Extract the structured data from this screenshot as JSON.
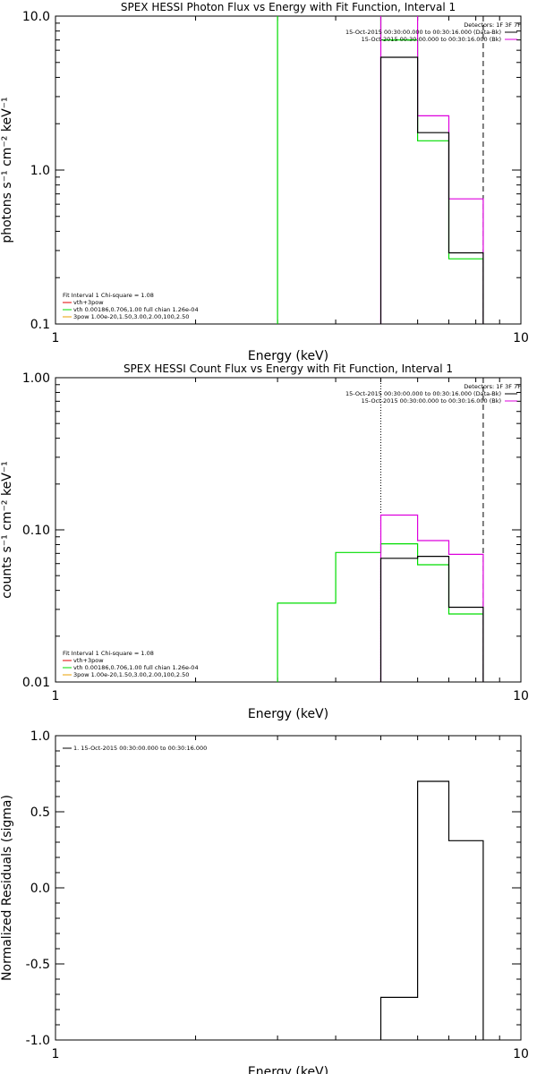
{
  "colors": {
    "black": "#000000",
    "green": "#00dd00",
    "magenta": "#dd00dd",
    "orange": "#e8a000",
    "red": "#e00000"
  },
  "chart_data": [
    {
      "type": "step",
      "title": "SPEX HESSI Photon Flux vs Energy with Fit Function, Interval 1",
      "xlabel": "Energy (keV)",
      "ylabel": "photons s⁻¹ cm⁻² keV⁻¹",
      "xscale": "log",
      "yscale": "log",
      "xlim": [
        1,
        10
      ],
      "ylim": [
        0.1,
        10
      ],
      "xticks": [
        "1",
        "10"
      ],
      "yticks": [
        {
          "v": 0.1,
          "label": "0.1"
        },
        {
          "v": 1,
          "label": "1.0"
        },
        {
          "v": 10,
          "label": "10.0"
        }
      ],
      "legend_tr": [
        {
          "text": "Detectors: 1F 3F 7F",
          "color": "",
          "line": false
        },
        {
          "text": "15-Oct-2015 00:30:00.000 to 00:30:16.000 (Data-Bk)",
          "color": "#000000",
          "line": true
        },
        {
          "text": "15-Oct-2015 00:30:00.000 to 00:30:16.000 (Bk)",
          "color": "#dd00dd",
          "line": true
        }
      ],
      "legend_bl": [
        {
          "text": "Fit Interval  1    Chi-square = 1.08",
          "color": "",
          "line": false
        },
        {
          "text": "vth+3pow",
          "color": "#e00000",
          "line": true
        },
        {
          "text": "vth 0.00186,0.706,1.00   full chian 1.26e-04",
          "color": "#00dd00",
          "line": true
        },
        {
          "text": "3pow 1.00e-20,1.50,3.00,2.00,100,2.50",
          "color": "#e8a000",
          "line": true
        }
      ],
      "vlines": [
        {
          "x": 5.0,
          "style": "solid",
          "color": "#dd00dd"
        },
        {
          "x": 8.3,
          "style": "dashed",
          "color": "#000000"
        }
      ],
      "series": [
        {
          "color": "#00dd00",
          "edges": [
            3.0,
            5.0,
            6.0,
            7.0,
            8.3
          ],
          "values": [
            10.5,
            7.0,
            1.55,
            0.265
          ]
        },
        {
          "color": "#dd00dd",
          "edges": [
            5.0,
            6.0,
            7.0,
            8.3
          ],
          "values": [
            10.5,
            2.25,
            0.65
          ]
        },
        {
          "color": "#000000",
          "edges": [
            5.0,
            6.0,
            7.0,
            8.3
          ],
          "values": [
            5.4,
            1.75,
            0.29
          ]
        }
      ]
    },
    {
      "type": "step",
      "title": "SPEX HESSI Count Flux vs Energy with Fit Function, Interval 1",
      "xlabel": "Energy (keV)",
      "ylabel": "counts s⁻¹ cm⁻² keV⁻¹",
      "xscale": "log",
      "yscale": "log",
      "xlim": [
        1,
        10
      ],
      "ylim": [
        0.01,
        1
      ],
      "xticks": [
        "1",
        "10"
      ],
      "yticks": [
        {
          "v": 0.01,
          "label": "0.01"
        },
        {
          "v": 0.1,
          "label": "0.10"
        },
        {
          "v": 1,
          "label": "1.00"
        }
      ],
      "legend_tr": [
        {
          "text": "Detectors: 1F 3F 7F",
          "color": "",
          "line": false
        },
        {
          "text": "15-Oct-2015 00:30:00.000 to 00:30:16.000 (Data-Bk)",
          "color": "#000000",
          "line": true
        },
        {
          "text": "15-Oct-2015 00:30:00.000 to 00:30:16.000 (Bk)",
          "color": "#dd00dd",
          "line": true
        }
      ],
      "legend_bl": [
        {
          "text": "Fit Interval  1    Chi-square = 1.08",
          "color": "",
          "line": false
        },
        {
          "text": "vth+3pow",
          "color": "#e00000",
          "line": true
        },
        {
          "text": "vth 0.00186,0.706,1.00   full chian 1.26e-04",
          "color": "#00dd00",
          "line": true
        },
        {
          "text": "3pow 1.00e-20,1.50,3.00,2.00,100,2.50",
          "color": "#e8a000",
          "line": true
        }
      ],
      "vlines": [
        {
          "x": 5.0,
          "style": "dotted",
          "color": "#000000"
        },
        {
          "x": 8.3,
          "style": "dashed",
          "color": "#000000"
        }
      ],
      "series": [
        {
          "color": "#00dd00",
          "edges": [
            3.0,
            4.0,
            5.0,
            6.0,
            7.0,
            8.3
          ],
          "values": [
            0.033,
            0.071,
            0.081,
            0.059,
            0.028
          ]
        },
        {
          "color": "#dd00dd",
          "edges": [
            5.0,
            6.0,
            7.0,
            8.3
          ],
          "values": [
            0.125,
            0.085,
            0.069
          ]
        },
        {
          "color": "#000000",
          "edges": [
            5.0,
            6.0,
            7.0,
            8.3
          ],
          "values": [
            0.065,
            0.067,
            0.031
          ]
        }
      ]
    },
    {
      "type": "step",
      "title": "",
      "xlabel": "Energy (keV)",
      "ylabel": "Normalized Residuals (sigma)",
      "xscale": "log",
      "yscale": "linear",
      "xlim": [
        1,
        10
      ],
      "ylim": [
        -1,
        1
      ],
      "xticks": [
        "1",
        "10"
      ],
      "yticks": [
        {
          "v": -1,
          "label": "-1.0"
        },
        {
          "v": -0.5,
          "label": "-0.5"
        },
        {
          "v": 0,
          "label": "0.0"
        },
        {
          "v": 0.5,
          "label": "0.5"
        },
        {
          "v": 1,
          "label": "1.0"
        }
      ],
      "legend_tl": [
        {
          "text": "1. 15-Oct-2015 00:30:00.000 to 00:30:16.000",
          "color": "#000000",
          "line": true
        }
      ],
      "vlines": [],
      "series": [
        {
          "color": "#000000",
          "edges": [
            5.0,
            6.0,
            7.0,
            8.3
          ],
          "values": [
            -0.72,
            0.7,
            0.31
          ],
          "closed": true
        }
      ]
    }
  ]
}
